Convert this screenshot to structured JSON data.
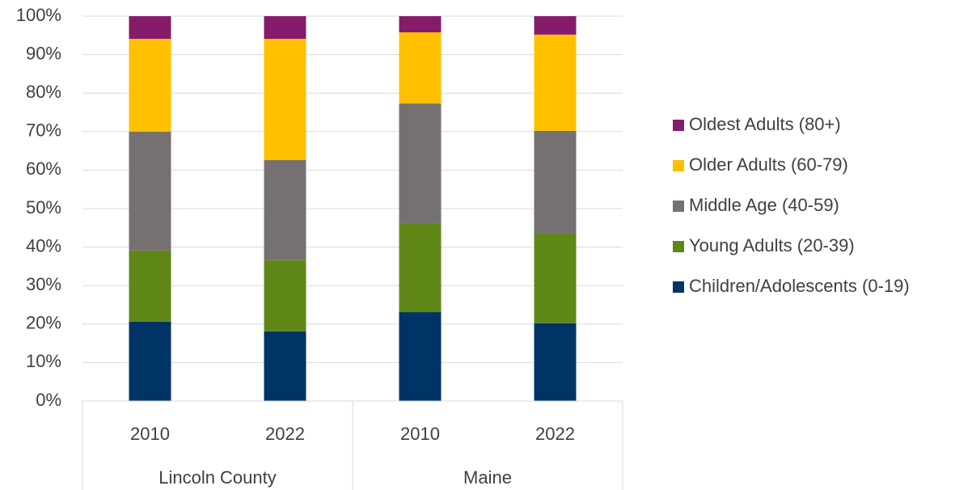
{
  "chart_data": {
    "type": "stacked_bar_100",
    "groups": [
      {
        "name": "Lincoln County",
        "categories": [
          "2010",
          "2022"
        ]
      },
      {
        "name": "Maine",
        "categories": [
          "2010",
          "2022"
        ]
      }
    ],
    "series": [
      {
        "name": "Children/Adolescents (0-19)",
        "color": "#003366",
        "values": [
          20.6,
          18.1,
          23.1,
          20.2
        ]
      },
      {
        "name": "Young Adults (20-39)",
        "color": "#5f8718",
        "values": [
          18.5,
          18.5,
          23.1,
          23.3
        ]
      },
      {
        "name": "Middle Age (40-59)",
        "color": "#767171",
        "values": [
          30.9,
          26.0,
          31.1,
          26.7
        ]
      },
      {
        "name": "Older Adults (60-79)",
        "color": "#ffc000",
        "values": [
          24.1,
          31.5,
          18.5,
          25.0
        ]
      },
      {
        "name": "Oldest Adults (80+)",
        "color": "#851c6a",
        "values": [
          5.9,
          5.9,
          4.2,
          4.8
        ]
      }
    ],
    "ylim": [
      0,
      100
    ],
    "yticks": [
      {
        "value": 0,
        "label": "0%"
      },
      {
        "value": 10,
        "label": "10%"
      },
      {
        "value": 20,
        "label": "20%"
      },
      {
        "value": 30,
        "label": "30%"
      },
      {
        "value": 40,
        "label": "40%"
      },
      {
        "value": 50,
        "label": "50%"
      },
      {
        "value": 60,
        "label": "60%"
      },
      {
        "value": 70,
        "label": "70%"
      },
      {
        "value": 80,
        "label": "80%"
      },
      {
        "value": 90,
        "label": "90%"
      },
      {
        "value": 100,
        "label": "100%"
      }
    ],
    "grid": true,
    "legend": "right"
  }
}
